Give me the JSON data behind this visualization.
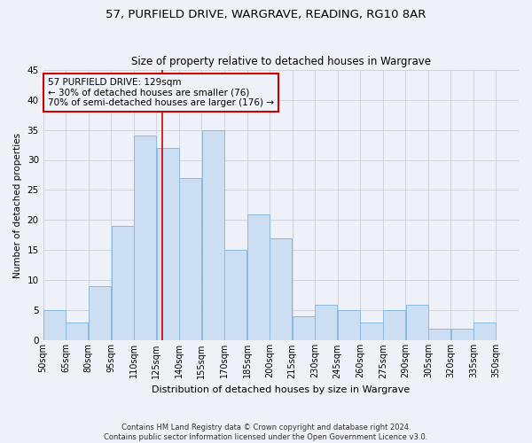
{
  "title": "57, PURFIELD DRIVE, WARGRAVE, READING, RG10 8AR",
  "subtitle": "Size of property relative to detached houses in Wargrave",
  "xlabel": "Distribution of detached houses by size in Wargrave",
  "ylabel": "Number of detached properties",
  "bar_labels": [
    "50sqm",
    "65sqm",
    "80sqm",
    "95sqm",
    "110sqm",
    "125sqm",
    "140sqm",
    "155sqm",
    "170sqm",
    "185sqm",
    "200sqm",
    "215sqm",
    "230sqm",
    "245sqm",
    "260sqm",
    "275sqm",
    "290sqm",
    "305sqm",
    "320sqm",
    "335sqm",
    "350sqm"
  ],
  "bar_values": [
    5,
    3,
    9,
    19,
    34,
    32,
    27,
    35,
    15,
    21,
    17,
    4,
    6,
    5,
    3,
    5,
    6,
    2,
    2,
    3,
    0
  ],
  "bin_edges": [
    50,
    65,
    80,
    95,
    110,
    125,
    140,
    155,
    170,
    185,
    200,
    215,
    230,
    245,
    260,
    275,
    290,
    305,
    320,
    335,
    350,
    365
  ],
  "property_line_x": 129,
  "bar_color": "#ccdff2",
  "bar_edge_color": "#89b8df",
  "annotation_line1": "57 PURFIELD DRIVE: 129sqm",
  "annotation_line2": "← 30% of detached houses are smaller (76)",
  "annotation_line3": "70% of semi-detached houses are larger (176) →",
  "annotation_box_edge_color": "#cc0000",
  "vline_color": "#cc0000",
  "ylim": [
    0,
    45
  ],
  "yticks": [
    0,
    5,
    10,
    15,
    20,
    25,
    30,
    35,
    40,
    45
  ],
  "grid_color": "#c8d0dc",
  "footer1": "Contains HM Land Registry data © Crown copyright and database right 2024.",
  "footer2": "Contains public sector information licensed under the Open Government Licence v3.0.",
  "bg_color": "#eef2f8"
}
